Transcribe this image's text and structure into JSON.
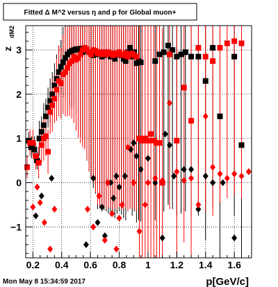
{
  "chart_data": {
    "type": "scatter",
    "title": "Fitted Δ M^2 versus η and p for Global muon+",
    "xlabel": "p[GeV/c]",
    "ylabel_main": "z",
    "ylabel_sub": "dM2",
    "timestamp": "Mon May  8 15:34:59 2017",
    "xlim": [
      0.15,
      1.72
    ],
    "ylim": [
      -1.7,
      3.55
    ],
    "x_ticks": [
      0.2,
      0.4,
      0.6,
      0.8,
      1.0,
      1.2,
      1.4,
      1.6
    ],
    "x_tick_labels": [
      "0.2",
      "0.4",
      "0.6",
      "0.8",
      "1",
      "1.2",
      "1.4",
      "1.6"
    ],
    "y_ticks": [
      -1,
      0,
      1,
      2,
      3
    ],
    "y_tick_labels": [
      "−1",
      "0",
      "1",
      "2",
      "3"
    ],
    "grid": true,
    "colors": {
      "black": "#000000",
      "red": "#ff0000"
    },
    "series": [
      {
        "marker": "square",
        "color": "#000000",
        "points": [
          [
            0.17,
            0.95,
            0.2
          ],
          [
            0.19,
            0.8,
            0.25
          ],
          [
            0.21,
            0.75,
            0.3
          ],
          [
            0.23,
            0.5,
            0.2
          ],
          [
            0.245,
            1.0,
            0.4
          ],
          [
            0.26,
            1.15,
            0.35
          ],
          [
            0.275,
            1.3,
            0.5
          ],
          [
            0.29,
            1.5,
            0.4
          ],
          [
            0.305,
            1.7,
            0.45
          ],
          [
            0.32,
            1.85,
            0.5
          ],
          [
            0.335,
            2.0,
            0.5
          ],
          [
            0.35,
            2.2,
            0.5
          ],
          [
            0.365,
            2.35,
            0.55
          ],
          [
            0.38,
            2.5,
            0.6
          ],
          [
            0.395,
            2.62,
            0.6
          ],
          [
            0.41,
            2.72,
            0.8
          ],
          [
            0.425,
            2.82,
            0.9
          ],
          [
            0.44,
            2.9,
            0.9
          ],
          [
            0.455,
            2.95,
            1.2
          ],
          [
            0.47,
            2.98,
            1.3
          ],
          [
            0.485,
            3.0,
            1.3
          ],
          [
            0.5,
            3.02,
            1.5
          ],
          [
            0.515,
            3.0,
            1.8
          ],
          [
            0.53,
            3.03,
            2.0
          ],
          [
            0.545,
            2.95,
            2.0
          ],
          [
            0.56,
            2.98,
            2.2
          ],
          [
            0.575,
            3.0,
            2.5
          ],
          [
            0.59,
            2.95,
            2.5
          ],
          [
            0.605,
            2.92,
            2.8
          ],
          [
            0.62,
            2.88,
            3.0
          ],
          [
            0.635,
            2.95,
            3.2
          ],
          [
            0.65,
            2.9,
            3.5
          ],
          [
            0.665,
            2.92,
            3.5
          ],
          [
            0.68,
            2.85,
            3.5
          ],
          [
            0.695,
            2.88,
            3.5
          ],
          [
            0.71,
            2.95,
            3.6
          ],
          [
            0.725,
            2.9,
            3.6
          ],
          [
            0.74,
            2.85,
            3.6
          ],
          [
            0.755,
            2.88,
            3.6
          ],
          [
            0.77,
            2.8,
            3.6
          ],
          [
            0.785,
            2.9,
            3.6
          ],
          [
            0.8,
            2.95,
            3.6
          ],
          [
            0.815,
            2.88,
            3.6
          ],
          [
            0.83,
            2.8,
            3.6
          ],
          [
            0.845,
            2.75,
            3.6
          ],
          [
            0.86,
            2.95,
            3.6
          ],
          [
            0.875,
            3.05,
            3.6
          ],
          [
            0.89,
            2.85,
            3.6
          ],
          [
            0.905,
            2.95,
            3.6
          ],
          [
            0.92,
            2.7,
            3.6
          ],
          [
            0.935,
            2.75,
            3.6
          ],
          [
            0.95,
            2.72,
            3.6
          ],
          [
            1.05,
            2.75,
            3.6
          ],
          [
            1.08,
            2.9,
            3.6
          ],
          [
            1.11,
            2.95,
            3.6
          ],
          [
            1.14,
            3.1,
            3.6
          ],
          [
            1.17,
            3.0,
            3.6
          ],
          [
            1.2,
            2.85,
            3.6
          ],
          [
            1.23,
            2.9,
            3.6
          ],
          [
            1.26,
            2.95,
            3.6
          ],
          [
            1.3,
            2.85,
            3.6
          ],
          [
            1.35,
            2.85,
            3.6
          ],
          [
            1.4,
            2.3,
            3.6
          ],
          [
            1.45,
            3.05,
            3.6
          ],
          [
            1.5,
            1.5,
            3.6
          ],
          [
            1.6,
            2.85,
            3.6
          ],
          [
            1.65,
            0.85,
            3.6
          ]
        ]
      },
      {
        "marker": "square",
        "color": "#ff0000",
        "points": [
          [
            0.16,
            0.35,
            0.25
          ],
          [
            0.18,
            0.9,
            0.3
          ],
          [
            0.2,
            0.9,
            0.3
          ],
          [
            0.22,
            0.6,
            0.3
          ],
          [
            0.24,
            0.45,
            0.35
          ],
          [
            0.26,
            0.85,
            0.4
          ],
          [
            0.275,
            1.0,
            0.5
          ],
          [
            0.29,
            1.05,
            0.45
          ],
          [
            0.305,
            0.7,
            0.5
          ],
          [
            0.32,
            1.6,
            0.5
          ],
          [
            0.335,
            1.75,
            0.6
          ],
          [
            0.35,
            1.9,
            0.55
          ],
          [
            0.365,
            2.1,
            0.7
          ],
          [
            0.38,
            2.3,
            0.8
          ],
          [
            0.395,
            2.25,
            0.8
          ],
          [
            0.41,
            2.45,
            0.9
          ],
          [
            0.425,
            2.5,
            1.0
          ],
          [
            0.44,
            2.6,
            1.1
          ],
          [
            0.455,
            2.7,
            1.2
          ],
          [
            0.47,
            2.75,
            1.3
          ],
          [
            0.485,
            2.85,
            1.5
          ],
          [
            0.5,
            2.78,
            1.6
          ],
          [
            0.515,
            2.82,
            1.8
          ],
          [
            0.53,
            2.9,
            2.0
          ],
          [
            0.545,
            3.0,
            2.2
          ],
          [
            0.56,
            3.05,
            2.3
          ],
          [
            0.575,
            3.02,
            2.5
          ],
          [
            0.59,
            2.95,
            2.7
          ],
          [
            0.605,
            2.9,
            2.8
          ],
          [
            0.62,
            3.0,
            3.0
          ],
          [
            0.635,
            2.98,
            3.2
          ],
          [
            0.65,
            2.92,
            3.4
          ],
          [
            0.665,
            2.95,
            3.5
          ],
          [
            0.68,
            2.9,
            3.5
          ],
          [
            0.695,
            2.95,
            3.5
          ],
          [
            0.71,
            2.9,
            3.5
          ],
          [
            0.725,
            2.95,
            3.5
          ],
          [
            0.74,
            2.92,
            3.5
          ],
          [
            0.755,
            2.88,
            3.5
          ],
          [
            0.77,
            2.92,
            3.5
          ],
          [
            0.785,
            2.9,
            3.5
          ],
          [
            0.8,
            2.95,
            3.5
          ],
          [
            0.815,
            2.9,
            3.5
          ],
          [
            0.83,
            2.88,
            3.5
          ],
          [
            0.845,
            2.93,
            3.5
          ],
          [
            0.86,
            2.85,
            3.5
          ],
          [
            0.875,
            2.9,
            3.5
          ],
          [
            0.89,
            2.92,
            3.5
          ],
          [
            0.905,
            2.88,
            3.5
          ],
          [
            0.92,
            2.85,
            3.5
          ],
          [
            0.94,
            1.0,
            3.5
          ],
          [
            0.96,
            0.95,
            3.5
          ],
          [
            0.98,
            1.0,
            3.5
          ],
          [
            1.0,
            0.95,
            3.5
          ],
          [
            1.02,
            1.1,
            3.5
          ],
          [
            1.04,
            0.95,
            3.5
          ],
          [
            1.06,
            0.9,
            3.5
          ],
          [
            1.08,
            0.9,
            3.5
          ],
          [
            1.1,
            0.0,
            3.5
          ],
          [
            1.15,
            2.9,
            3.5
          ],
          [
            1.2,
            0.95,
            3.5
          ],
          [
            1.25,
            2.15,
            3.5
          ],
          [
            1.3,
            1.4,
            3.5
          ],
          [
            1.35,
            3.05,
            3.5
          ],
          [
            1.4,
            2.85,
            3.5
          ],
          [
            1.45,
            2.75,
            3.5
          ],
          [
            1.5,
            3.05,
            3.5
          ],
          [
            1.55,
            3.15,
            3.5
          ],
          [
            1.6,
            3.2,
            3.5
          ],
          [
            1.65,
            3.15,
            3.5
          ]
        ]
      },
      {
        "marker": "diamond",
        "color": "#000000",
        "points": [
          [
            0.22,
            -0.75
          ],
          [
            0.26,
            -0.3
          ],
          [
            0.33,
            0.1
          ],
          [
            0.57,
            -1.4
          ],
          [
            0.62,
            0.1
          ],
          [
            0.65,
            -0.9
          ],
          [
            0.68,
            -0.55
          ],
          [
            0.7,
            -1.2
          ],
          [
            0.74,
            0.0
          ],
          [
            0.76,
            -0.35
          ],
          [
            0.78,
            0.15
          ],
          [
            0.8,
            -0.1
          ],
          [
            0.84,
            0.15
          ],
          [
            0.88,
            0.75
          ],
          [
            0.9,
            0.9
          ],
          [
            0.92,
            0.6
          ],
          [
            0.95,
            0.3
          ],
          [
            1.0,
            0.55
          ],
          [
            1.05,
            0.0
          ],
          [
            1.1,
            -1.25
          ],
          [
            1.12,
            1.1
          ],
          [
            1.15,
            0.85
          ],
          [
            1.18,
            0.15
          ],
          [
            1.25,
            0.3
          ],
          [
            1.3,
            0.3
          ],
          [
            1.35,
            -0.6
          ],
          [
            1.4,
            0.15
          ],
          [
            1.45,
            0.0
          ],
          [
            1.52,
            0.0
          ],
          [
            1.6,
            -1.25
          ],
          [
            1.7,
            0.25
          ]
        ]
      },
      {
        "marker": "diamond",
        "color": "#ff0000",
        "points": [
          [
            0.2,
            -0.55
          ],
          [
            0.23,
            -0.1
          ],
          [
            0.25,
            -0.45
          ],
          [
            0.28,
            -0.9
          ],
          [
            0.32,
            -1.5
          ],
          [
            0.35,
            -0.6
          ],
          [
            0.58,
            -0.6
          ],
          [
            0.62,
            -1.0
          ],
          [
            0.66,
            -0.3
          ],
          [
            0.7,
            -1.3
          ],
          [
            0.72,
            0.0
          ],
          [
            0.75,
            -0.7
          ],
          [
            0.78,
            -1.5
          ],
          [
            0.8,
            -0.8
          ],
          [
            0.82,
            -0.5
          ],
          [
            0.86,
            0.8
          ],
          [
            0.9,
            0.0
          ],
          [
            0.94,
            -1.1
          ],
          [
            0.98,
            -0.5
          ],
          [
            1.0,
            0.0
          ],
          [
            1.05,
            0.1
          ],
          [
            1.1,
            0.05
          ],
          [
            1.15,
            1.8
          ],
          [
            1.2,
            0.25
          ],
          [
            1.25,
            0.05
          ],
          [
            1.3,
            0.1
          ],
          [
            1.35,
            -0.5
          ],
          [
            1.4,
            1.5
          ],
          [
            1.45,
            0.35
          ],
          [
            1.5,
            0.2
          ],
          [
            1.55,
            0.1
          ],
          [
            1.6,
            0.2
          ],
          [
            1.65,
            0.15
          ],
          [
            1.7,
            0.25
          ]
        ]
      }
    ]
  }
}
